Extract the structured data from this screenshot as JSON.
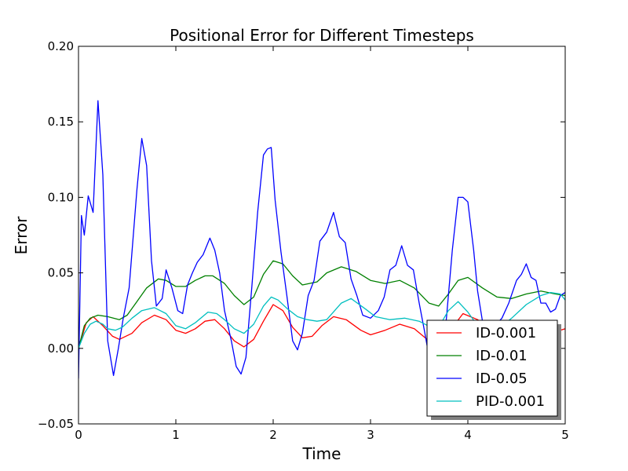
{
  "chart_data": {
    "type": "line",
    "title": "Positional Error for Different Timesteps",
    "xlabel": "Time",
    "ylabel": "Error",
    "xlim": [
      0,
      5
    ],
    "ylim": [
      -0.05,
      0.2
    ],
    "x_ticks": [
      {
        "value": 0,
        "label": "0"
      },
      {
        "value": 1,
        "label": "1"
      },
      {
        "value": 2,
        "label": "2"
      },
      {
        "value": 3,
        "label": "3"
      },
      {
        "value": 4,
        "label": "4"
      },
      {
        "value": 5,
        "label": "5"
      }
    ],
    "y_ticks": [
      {
        "value": -0.05,
        "label": "−0.05"
      },
      {
        "value": 0.0,
        "label": "0.00"
      },
      {
        "value": 0.05,
        "label": "0.05"
      },
      {
        "value": 0.1,
        "label": "0.10"
      },
      {
        "value": 0.15,
        "label": "0.15"
      },
      {
        "value": 0.2,
        "label": "0.20"
      }
    ],
    "grid": false,
    "legend": {
      "placement": "lower-right",
      "shadow": true
    },
    "series": [
      {
        "name": "ID-0.001",
        "color": "#ff0000",
        "x": [
          0.0,
          0.08,
          0.15,
          0.25,
          0.35,
          0.42,
          0.55,
          0.65,
          0.78,
          0.9,
          1.0,
          1.1,
          1.2,
          1.3,
          1.4,
          1.5,
          1.6,
          1.7,
          1.8,
          1.9,
          2.0,
          2.1,
          2.2,
          2.3,
          2.4,
          2.5,
          2.62,
          2.75,
          2.9,
          3.0,
          3.15,
          3.3,
          3.45,
          3.6,
          3.7,
          3.82,
          3.95,
          4.1,
          4.25,
          4.4,
          4.6,
          4.8,
          5.0
        ],
        "y": [
          0.0,
          0.017,
          0.021,
          0.015,
          0.008,
          0.006,
          0.01,
          0.017,
          0.022,
          0.019,
          0.012,
          0.01,
          0.013,
          0.018,
          0.019,
          0.013,
          0.005,
          0.001,
          0.006,
          0.018,
          0.029,
          0.025,
          0.014,
          0.007,
          0.008,
          0.015,
          0.021,
          0.019,
          0.012,
          0.009,
          0.012,
          0.016,
          0.013,
          0.005,
          0.002,
          0.012,
          0.023,
          0.019,
          0.012,
          0.009,
          0.01,
          0.009,
          0.013
        ]
      },
      {
        "name": "ID-0.01",
        "color": "#008000",
        "x": [
          0.0,
          0.06,
          0.12,
          0.2,
          0.3,
          0.42,
          0.5,
          0.6,
          0.7,
          0.82,
          0.9,
          1.0,
          1.1,
          1.2,
          1.3,
          1.38,
          1.5,
          1.6,
          1.7,
          1.8,
          1.9,
          2.0,
          2.1,
          2.2,
          2.3,
          2.45,
          2.55,
          2.7,
          2.85,
          3.0,
          3.15,
          3.3,
          3.45,
          3.6,
          3.7,
          3.8,
          3.9,
          4.0,
          4.15,
          4.3,
          4.45,
          4.6,
          4.75,
          4.9,
          5.0
        ],
        "y": [
          0.0,
          0.015,
          0.02,
          0.022,
          0.021,
          0.019,
          0.022,
          0.031,
          0.04,
          0.046,
          0.045,
          0.041,
          0.041,
          0.045,
          0.048,
          0.048,
          0.043,
          0.035,
          0.029,
          0.034,
          0.049,
          0.058,
          0.056,
          0.048,
          0.042,
          0.044,
          0.05,
          0.054,
          0.051,
          0.045,
          0.043,
          0.045,
          0.04,
          0.03,
          0.028,
          0.036,
          0.045,
          0.047,
          0.04,
          0.034,
          0.033,
          0.036,
          0.038,
          0.036,
          0.035
        ]
      },
      {
        "name": "ID-0.05",
        "color": "#0000ff",
        "x": [
          0.0,
          0.03,
          0.06,
          0.1,
          0.15,
          0.2,
          0.25,
          0.3,
          0.36,
          0.41,
          0.46,
          0.52,
          0.6,
          0.65,
          0.7,
          0.75,
          0.8,
          0.86,
          0.9,
          0.96,
          1.02,
          1.07,
          1.12,
          1.17,
          1.22,
          1.28,
          1.35,
          1.4,
          1.45,
          1.5,
          1.57,
          1.62,
          1.67,
          1.72,
          1.78,
          1.84,
          1.9,
          1.94,
          1.98,
          2.02,
          2.08,
          2.14,
          2.2,
          2.25,
          2.3,
          2.36,
          2.42,
          2.48,
          2.55,
          2.62,
          2.68,
          2.74,
          2.8,
          2.86,
          2.92,
          3.0,
          3.08,
          3.14,
          3.2,
          3.26,
          3.32,
          3.38,
          3.44,
          3.5,
          3.55,
          3.6,
          3.66,
          3.72,
          3.78,
          3.84,
          3.9,
          3.95,
          4.0,
          4.06,
          4.1,
          4.15,
          4.2,
          4.28,
          4.35,
          4.42,
          4.5,
          4.55,
          4.6,
          4.65,
          4.7,
          4.75,
          4.8,
          4.85,
          4.9,
          4.95,
          5.0
        ],
        "y": [
          -0.02,
          0.088,
          0.075,
          0.101,
          0.09,
          0.164,
          0.115,
          0.005,
          -0.018,
          0.0,
          0.02,
          0.04,
          0.105,
          0.139,
          0.121,
          0.058,
          0.028,
          0.033,
          0.052,
          0.04,
          0.025,
          0.023,
          0.042,
          0.05,
          0.057,
          0.062,
          0.073,
          0.065,
          0.05,
          0.025,
          0.005,
          -0.012,
          -0.017,
          -0.006,
          0.04,
          0.09,
          0.128,
          0.132,
          0.133,
          0.098,
          0.064,
          0.035,
          0.005,
          -0.001,
          0.01,
          0.035,
          0.045,
          0.071,
          0.077,
          0.09,
          0.074,
          0.07,
          0.046,
          0.035,
          0.022,
          0.02,
          0.025,
          0.034,
          0.052,
          0.055,
          0.068,
          0.055,
          0.052,
          0.03,
          0.013,
          -0.005,
          -0.012,
          -0.01,
          0.02,
          0.065,
          0.1,
          0.1,
          0.097,
          0.065,
          0.038,
          0.018,
          0.01,
          0.015,
          0.02,
          0.03,
          0.045,
          0.049,
          0.056,
          0.047,
          0.045,
          0.03,
          0.03,
          0.024,
          0.026,
          0.035,
          0.037
        ]
      },
      {
        "name": "PID-0.001",
        "color": "#00bfbf",
        "x": [
          0.0,
          0.06,
          0.12,
          0.18,
          0.25,
          0.3,
          0.38,
          0.45,
          0.55,
          0.65,
          0.78,
          0.9,
          1.0,
          1.1,
          1.2,
          1.33,
          1.42,
          1.5,
          1.6,
          1.7,
          1.8,
          1.9,
          1.98,
          2.05,
          2.15,
          2.25,
          2.35,
          2.45,
          2.55,
          2.7,
          2.8,
          2.95,
          3.05,
          3.2,
          3.35,
          3.5,
          3.62,
          3.7,
          3.8,
          3.9,
          4.0,
          4.1,
          4.2,
          4.3,
          4.45,
          4.6,
          4.75,
          4.85,
          4.95,
          5.0
        ],
        "y": [
          0.0,
          0.01,
          0.016,
          0.018,
          0.016,
          0.013,
          0.012,
          0.014,
          0.02,
          0.025,
          0.027,
          0.023,
          0.015,
          0.013,
          0.017,
          0.024,
          0.023,
          0.019,
          0.013,
          0.01,
          0.016,
          0.028,
          0.034,
          0.032,
          0.026,
          0.021,
          0.019,
          0.018,
          0.019,
          0.03,
          0.033,
          0.026,
          0.021,
          0.019,
          0.02,
          0.018,
          0.014,
          0.014,
          0.025,
          0.031,
          0.024,
          0.015,
          0.011,
          0.012,
          0.02,
          0.029,
          0.035,
          0.037,
          0.036,
          0.032
        ]
      }
    ]
  }
}
